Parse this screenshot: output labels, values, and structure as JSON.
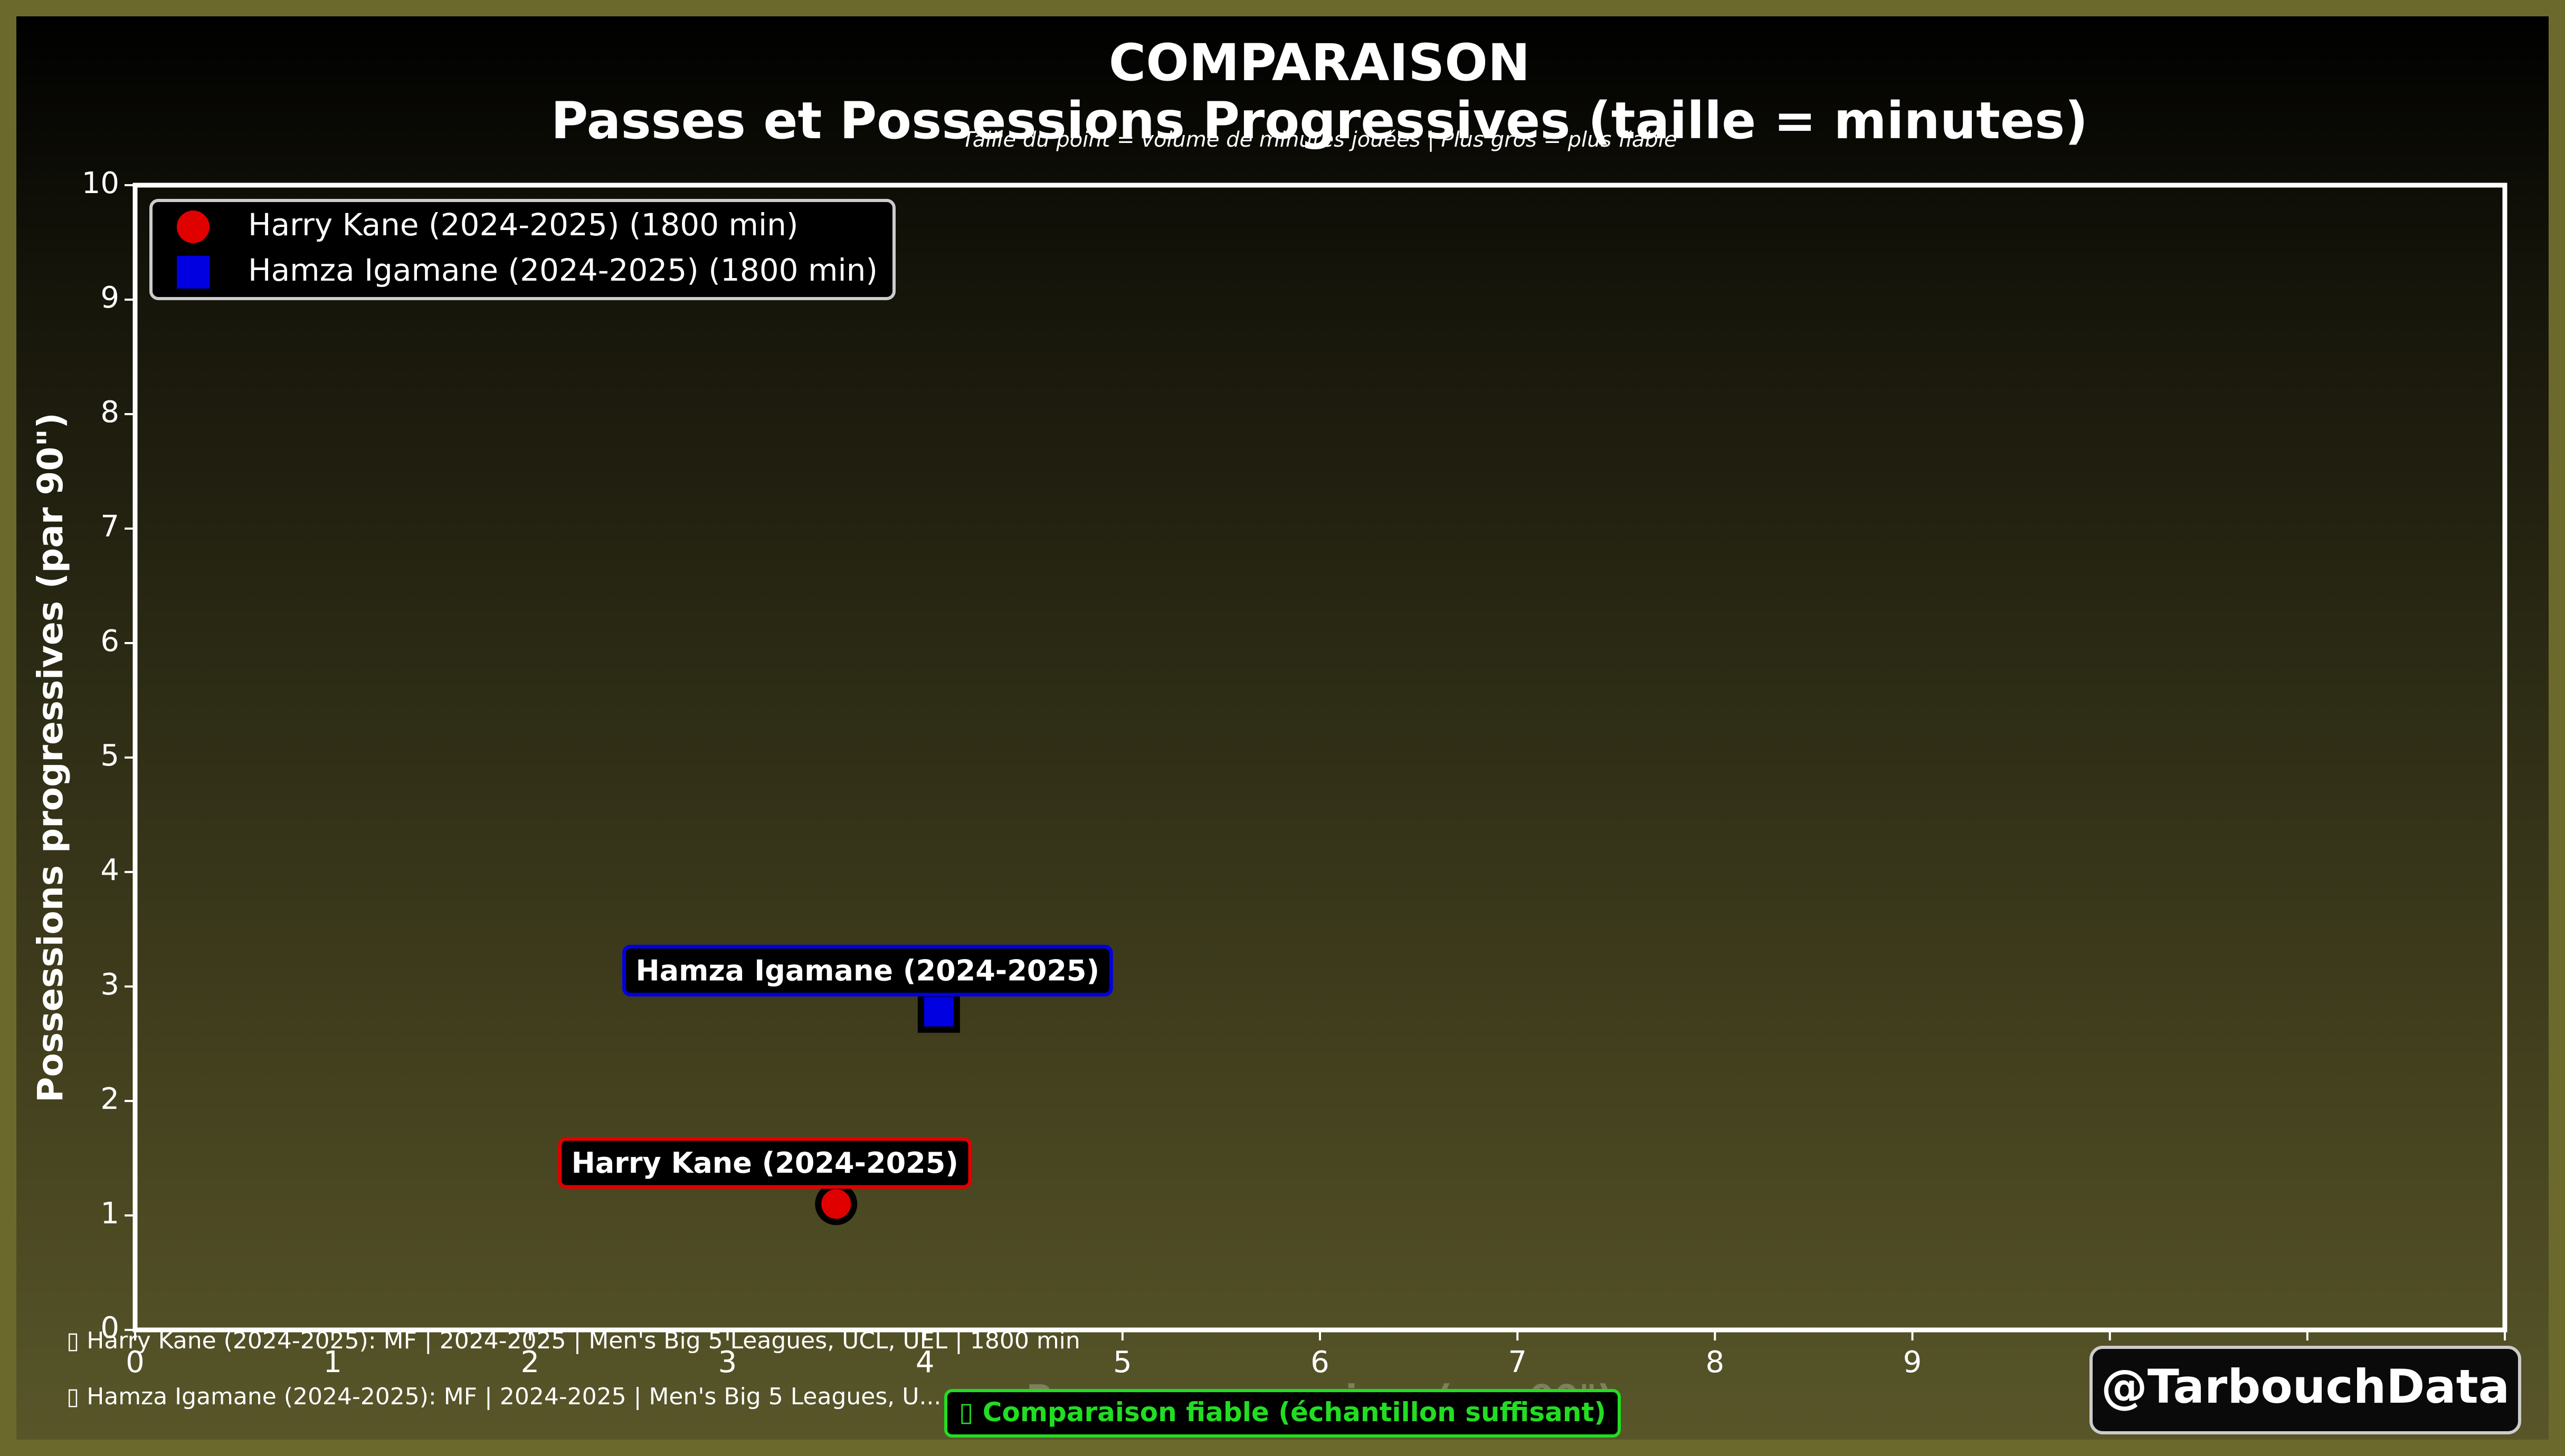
{
  "chart_data": {
    "type": "scatter",
    "title_line1": "COMPARAISON",
    "title_line2": "Passes et Possessions Progressives (taille = minutes)",
    "subtitle": "Taille du point = volume de minutes jouées | Plus gros = plus fiable",
    "xlabel": "Passes progressives (par 90\")",
    "ylabel": "Possessions progressives (par 90\")",
    "xlim": [
      0,
      12
    ],
    "ylim": [
      0,
      10
    ],
    "x_ticks": [
      "0",
      "1",
      "2",
      "3",
      "4",
      "5",
      "6",
      "7",
      "8",
      "9",
      "10",
      "11",
      "12"
    ],
    "y_ticks": [
      "0",
      "1",
      "2",
      "3",
      "4",
      "5",
      "6",
      "7",
      "8",
      "9",
      "10"
    ],
    "grid": false,
    "legend_position": "top-left",
    "series": [
      {
        "name": "Harry Kane (2024-2025) (1800 min)",
        "label": "Harry Kane (2024-2025)",
        "marker": "circle",
        "color": "#e00000",
        "x": 3.55,
        "y": 1.1,
        "minutes": 1800
      },
      {
        "name": "Hamza Igamane (2024-2025) (1800 min)",
        "label": "Hamza Igamane (2024-2025)",
        "marker": "square",
        "color": "#0000e0",
        "x": 4.07,
        "y": 2.78,
        "minutes": 1800
      }
    ]
  },
  "footer": {
    "line1": "Harry Kane (2024-2025): MF | 2024-2025 | Men's Big 5 Leagues, UCL, UEL | 1800 min",
    "line2": "Hamza Igamane (2024-2025): MF | 2024-2025 | Men's Big 5 Leagues, U...",
    "badge": "Comparaison fiable (échantillon suffisant)",
    "handle": "@TarbouchData"
  },
  "colors": {
    "outer_border": "#6b6a2c",
    "axes_frame": "#ffffff",
    "badge_green": "#22dd22"
  }
}
